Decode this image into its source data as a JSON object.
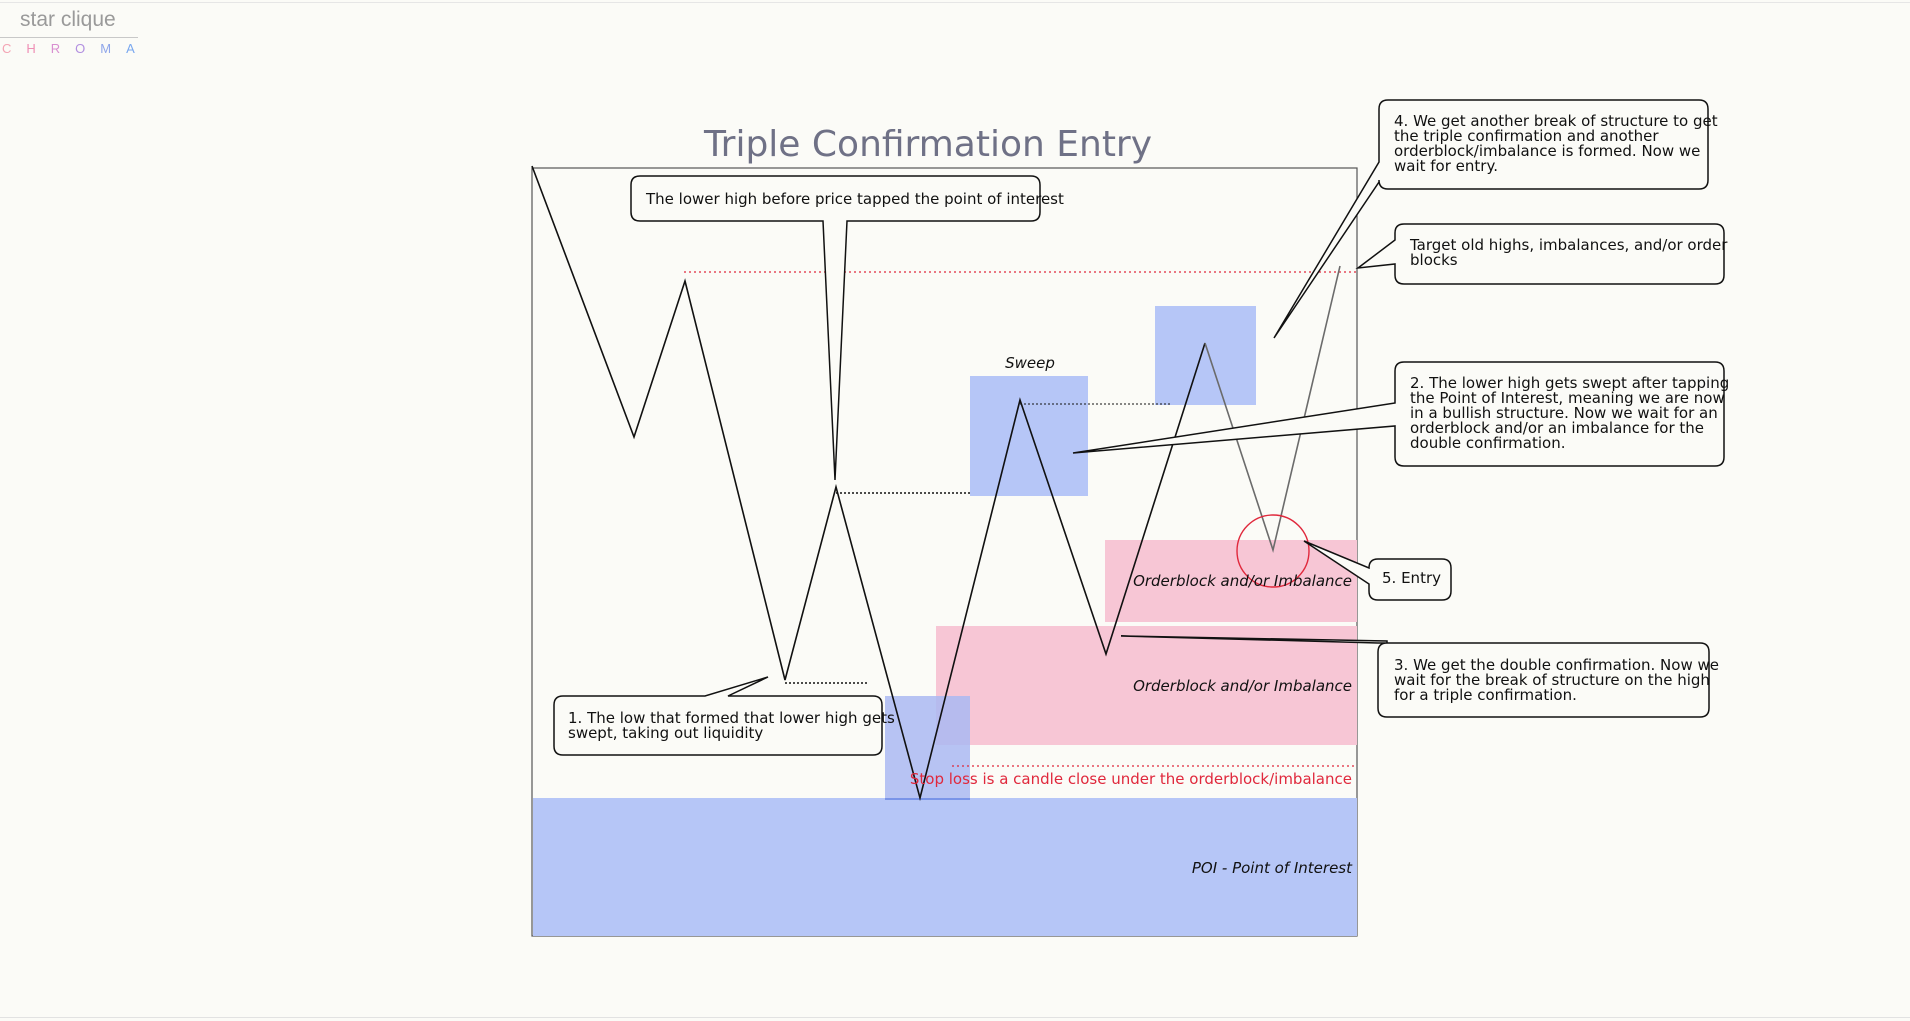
{
  "brand": {
    "name": "star clique",
    "sub_letters": [
      "C",
      "H",
      "R",
      "O",
      "M",
      "A"
    ]
  },
  "diagram": {
    "title": "Triple Confirmation Entry",
    "zones": {
      "sweep": "Sweep",
      "orderblock_upper": "Orderblock and/or Imbalance",
      "orderblock_lower": "Orderblock and/or Imbalance",
      "stop_loss": "Stop loss is a candle close under the orderblock/imbalance",
      "poi": "POI - Point of Interest"
    },
    "callouts": {
      "lower_high": [
        "The lower high before price tapped the point of interest"
      ],
      "step1": [
        "1. The low that formed that lower high gets",
        "swept, taking out liquidity"
      ],
      "step2": [
        "2. The lower high gets swept after tapping",
        "the Point of Interest, meaning we are now",
        "in a bullish structure. Now we wait for an",
        "orderblock and/or an imbalance for the",
        "double confirmation."
      ],
      "step3": [
        "3. We get the double confirmation. Now we",
        "wait for the break of structure on the high",
        "for a triple confirmation."
      ],
      "step4": [
        "4. We get another break of structure to get",
        "the triple confirmation and another",
        "orderblock/imbalance is formed. Now we",
        "wait for entry."
      ],
      "step5": [
        "5. Entry"
      ],
      "target": [
        "Target old highs, imbalances, and/or order",
        "blocks"
      ]
    },
    "colors": {
      "blue_zone": "#b6c6f7",
      "pink_zone": "#f7c6d5",
      "stop_red": "#e0283c",
      "title": "#6f7186"
    }
  }
}
